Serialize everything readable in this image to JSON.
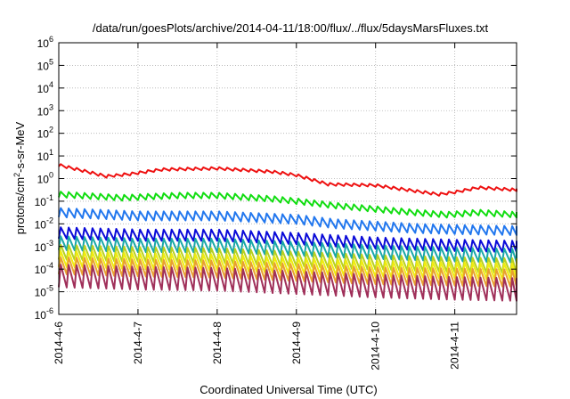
{
  "chart_data": {
    "type": "line",
    "title": "/data/run/goesPlots/archive/2014-04-11/18:00/flux/../flux/5daysMarsFluxes.txt",
    "xlabel": "Coordinated Universal Time (UTC)",
    "ylabel": "protons/cm²-s-sr-MeV",
    "ylabel_parts": {
      "pre": "protons/cm",
      "sup": "2",
      "post": "-s-sr-MeV"
    },
    "yscale": "log",
    "ylim_exp": [
      -6,
      6
    ],
    "y_ticks": [
      {
        "base": "10",
        "exp": "-6"
      },
      {
        "base": "10",
        "exp": "-5"
      },
      {
        "base": "10",
        "exp": "-4"
      },
      {
        "base": "10",
        "exp": "-3"
      },
      {
        "base": "10",
        "exp": "-2"
      },
      {
        "base": "10",
        "exp": "-1"
      },
      {
        "base": "10",
        "exp": "0"
      },
      {
        "base": "10",
        "exp": "1"
      },
      {
        "base": "10",
        "exp": "2"
      },
      {
        "base": "10",
        "exp": "3"
      },
      {
        "base": "10",
        "exp": "4"
      },
      {
        "base": "10",
        "exp": "5"
      },
      {
        "base": "10",
        "exp": "6"
      }
    ],
    "x_ticks": [
      "2014-4-6",
      "2014-4-7",
      "2014-4-8",
      "2014-4-9",
      "2014-4-10",
      "2014-4-11"
    ],
    "x_tick_positions_days": [
      0,
      1,
      2,
      3,
      4,
      5
    ],
    "xlim_days": [
      0,
      5.78
    ],
    "grid": true,
    "sawtooth_period_days": 0.1,
    "series": [
      {
        "color": "#ee1111",
        "anchors_x": [
          0,
          0.6,
          0.9,
          1.3,
          2.0,
          2.7,
          3.0,
          3.4,
          4.0,
          4.5,
          4.8,
          5.0,
          5.3,
          5.78
        ],
        "anchors_log": [
          0.6,
          0.1,
          0.2,
          0.4,
          0.45,
          0.3,
          0.15,
          -0.25,
          -0.3,
          -0.55,
          -0.7,
          -0.6,
          -0.4,
          -0.5
        ],
        "amp": 0.12
      },
      {
        "color": "#11dd11",
        "anchors_x": [
          0,
          0.8,
          1.5,
          2.0,
          2.7,
          3.0,
          3.5,
          4.0,
          4.5,
          4.9,
          5.3,
          5.78
        ],
        "anchors_log": [
          -0.7,
          -0.85,
          -0.75,
          -0.75,
          -0.9,
          -1.0,
          -1.2,
          -1.35,
          -1.5,
          -1.6,
          -1.5,
          -1.6
        ],
        "amp": 0.25
      },
      {
        "color": "#2277ee",
        "anchors_x": [
          0,
          1.0,
          2.0,
          3.0,
          3.5,
          4.0,
          4.5,
          5.0,
          5.78
        ],
        "anchors_log": [
          -1.5,
          -1.65,
          -1.65,
          -1.8,
          -2.0,
          -2.1,
          -2.2,
          -2.25,
          -2.3
        ],
        "amp": 0.4
      },
      {
        "color": "#0a0ad8",
        "anchors_x": [
          0,
          1.0,
          2.0,
          3.0,
          4.0,
          5.0,
          5.78
        ],
        "anchors_log": [
          -2.4,
          -2.5,
          -2.5,
          -2.65,
          -2.85,
          -2.95,
          -3.0
        ],
        "amp": 0.5
      },
      {
        "color": "#1aa8a8",
        "anchors_x": [
          0,
          1.0,
          2.0,
          3.0,
          4.0,
          5.0,
          5.78
        ],
        "anchors_log": [
          -2.85,
          -2.95,
          -2.95,
          -3.1,
          -3.25,
          -3.35,
          -3.4
        ],
        "amp": 0.6
      },
      {
        "color": "#b8d020",
        "anchors_x": [
          0,
          1.0,
          2.0,
          3.0,
          4.0,
          5.0,
          5.78
        ],
        "anchors_log": [
          -3.25,
          -3.35,
          -3.4,
          -3.55,
          -3.7,
          -3.8,
          -3.85
        ],
        "amp": 0.65
      },
      {
        "color": "#f0ec10",
        "anchors_x": [
          0,
          1.0,
          2.0,
          3.0,
          4.0,
          5.0,
          5.78
        ],
        "anchors_log": [
          -3.55,
          -3.65,
          -3.7,
          -3.85,
          -4.0,
          -4.05,
          -4.1
        ],
        "amp": 0.7
      },
      {
        "color": "#e8a030",
        "anchors_x": [
          0,
          1.0,
          2.0,
          3.0,
          4.0,
          5.0,
          5.78
        ],
        "anchors_log": [
          -3.85,
          -3.95,
          -4.0,
          -4.15,
          -4.3,
          -4.35,
          -4.4
        ],
        "amp": 0.75
      },
      {
        "color": "#a0305a",
        "anchors_x": [
          0,
          1.0,
          2.0,
          3.0,
          4.0,
          5.0,
          5.78
        ],
        "anchors_log": [
          -4.3,
          -4.4,
          -4.45,
          -4.6,
          -4.75,
          -4.85,
          -4.9
        ],
        "amp": 1.0
      }
    ]
  }
}
